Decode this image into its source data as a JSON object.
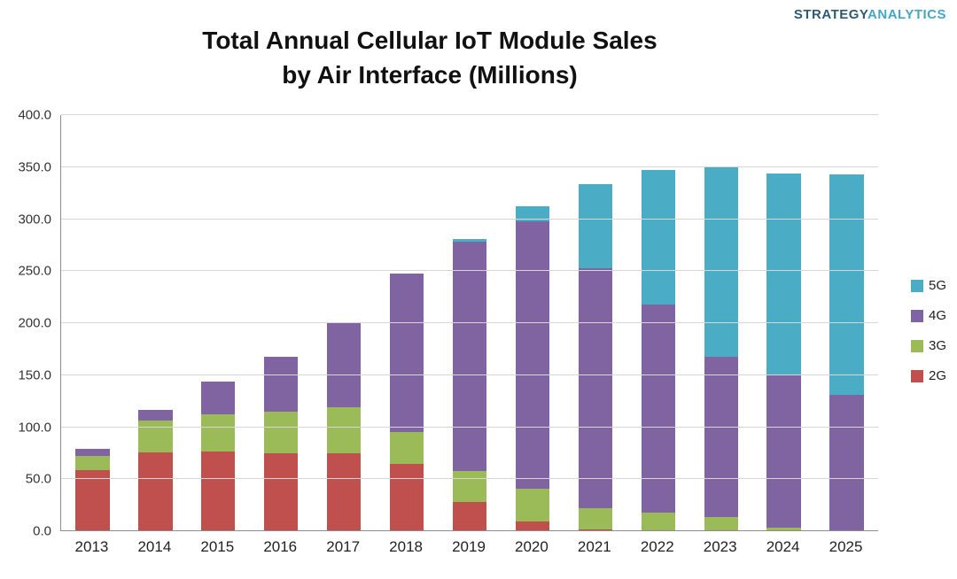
{
  "logo": {
    "part1": "STRATEGY",
    "part2": "ANALYTICS"
  },
  "chart_data": {
    "type": "bar",
    "stacked": true,
    "title_line1": "Total Annual Cellular IoT Module Sales",
    "title_line2": "by Air Interface (Millions)",
    "categories": [
      "2013",
      "2014",
      "2015",
      "2016",
      "2017",
      "2018",
      "2019",
      "2020",
      "2021",
      "2022",
      "2023",
      "2024",
      "2025"
    ],
    "series": [
      {
        "name": "2G",
        "color": "#C0504D",
        "values": [
          59,
          76,
          77,
          75,
          75,
          65,
          28,
          9,
          2,
          1,
          0,
          0,
          0
        ]
      },
      {
        "name": "3G",
        "color": "#9BBB59",
        "values": [
          13,
          30,
          35,
          40,
          44,
          30,
          30,
          32,
          20,
          17,
          14,
          3,
          1
        ]
      },
      {
        "name": "4G",
        "color": "#8064A2",
        "values": [
          7,
          11,
          32,
          53,
          81,
          153,
          220,
          257,
          231,
          200,
          154,
          148,
          130
        ]
      },
      {
        "name": "5G",
        "color": "#4BACC6",
        "values": [
          0,
          0,
          0,
          0,
          0,
          0,
          3,
          14,
          81,
          129,
          182,
          193,
          212
        ]
      }
    ],
    "legend_order": [
      "5G",
      "4G",
      "3G",
      "2G"
    ],
    "legend_position": "right",
    "ylim": [
      0,
      400
    ],
    "ytick_step": 50,
    "ytick_decimals": 1,
    "grid": true,
    "xlabel": "",
    "ylabel": ""
  }
}
